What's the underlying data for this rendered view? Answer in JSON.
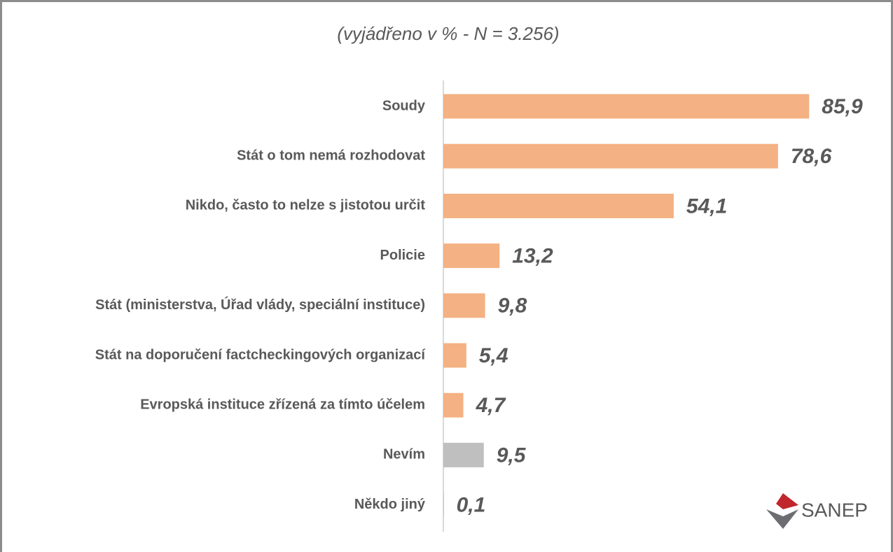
{
  "chart_data": {
    "type": "barh",
    "title": "(vyjádřeno v % - N = 3.256)",
    "categories": [
      "Soudy",
      "Stát o tom nemá rozhodovat",
      "Nikdo, často to nelze s jistotou určit",
      "Policie",
      "Stát (ministerstva, Úřad vlády, speciální instituce)",
      "Stát na doporučení factcheckingových organizací",
      "Evropská instituce zřízená za tímto účelem",
      "Nevím",
      "Někdo jiný"
    ],
    "values": [
      85.9,
      78.6,
      54.1,
      13.2,
      9.8,
      5.4,
      4.7,
      9.5,
      0.1
    ],
    "value_labels": [
      "85,9",
      "78,6",
      "54,1",
      "13,2",
      "9,8",
      "5,4",
      "4,7",
      "9,5",
      "0,1"
    ],
    "colors": [
      "#f4b183",
      "#f4b183",
      "#f4b183",
      "#f4b183",
      "#f4b183",
      "#f4b183",
      "#f4b183",
      "#bfbfbf",
      "#f4b183"
    ],
    "xlim": [
      0,
      100
    ],
    "logo": "SANEP"
  }
}
